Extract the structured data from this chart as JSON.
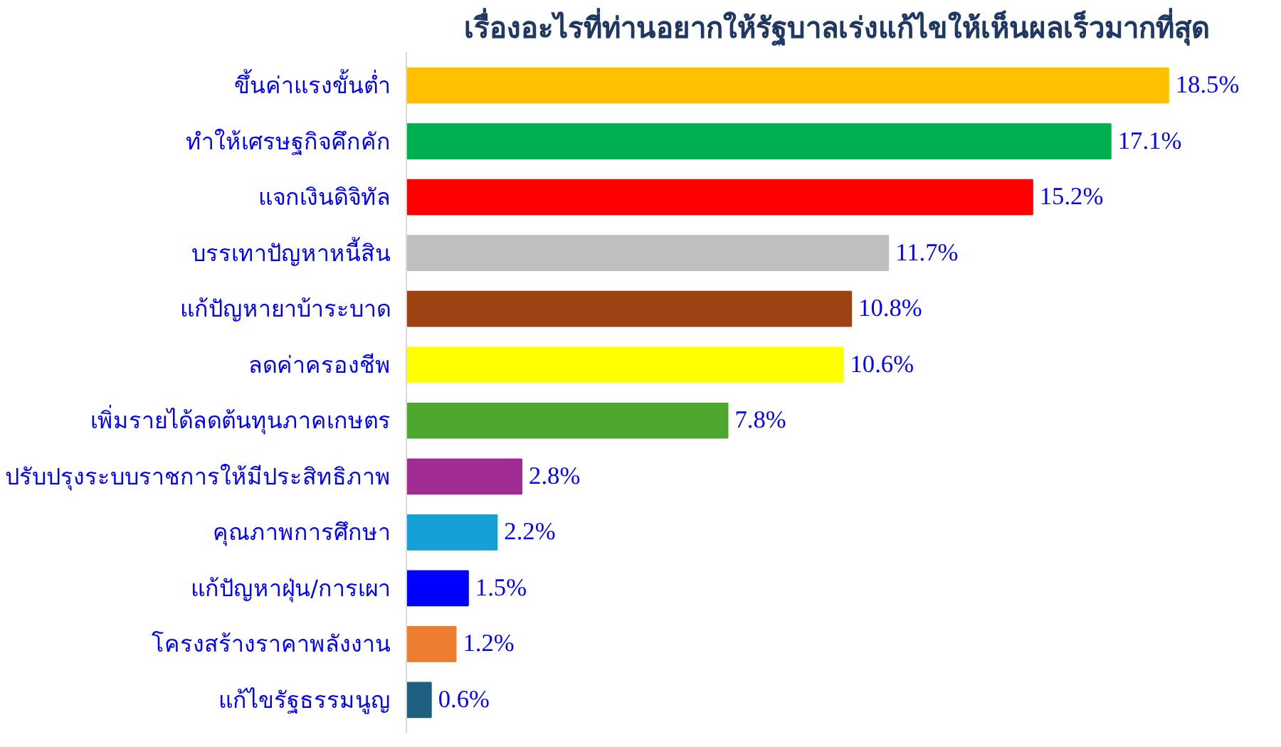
{
  "chart_data": {
    "type": "bar",
    "orientation": "horizontal",
    "title": "เรื่องอะไรที่ท่านอยากให้รัฐบาลเร่งแก้ไขให้เห็นผลเร็วมากที่สุด",
    "categories": [
      "ขึ้นค่าแรงขั้นต่ำ",
      "ทำให้เศรษฐกิจคึกคัก",
      "แจกเงินดิจิทัล",
      "บรรเทาปัญหาหนี้สิน",
      "แก้ปัญหายาบ้าระบาด",
      "ลดค่าครองชีพ",
      "เพิ่มรายได้ลดต้นทุนภาคเกษตร",
      "ปรับปรุงระบบราชการให้มีประสิทธิภาพ",
      "คุณภาพการศึกษา",
      "แก้ปัญหาฝุ่น/การเผา",
      "โครงสร้างราคาพลังงาน",
      "แก้ไขรัฐธรรมนูญ"
    ],
    "values": [
      18.5,
      17.1,
      15.2,
      11.7,
      10.8,
      10.6,
      7.8,
      2.8,
      2.2,
      1.5,
      1.2,
      0.6
    ],
    "colors": [
      "#ffc000",
      "#00b050",
      "#ff0000",
      "#bfbfbf",
      "#9c4213",
      "#ffff00",
      "#4ea72e",
      "#a02b93",
      "#16a0d8",
      "#0000ff",
      "#ed7d31",
      "#1f6080"
    ],
    "value_labels": [
      "18.5%",
      "17.1%",
      "15.2%",
      "11.7%",
      "10.8%",
      "10.6%",
      "7.8%",
      "2.8%",
      "2.2%",
      "1.5%",
      "1.2%",
      "0.6%"
    ],
    "grid": false
  }
}
